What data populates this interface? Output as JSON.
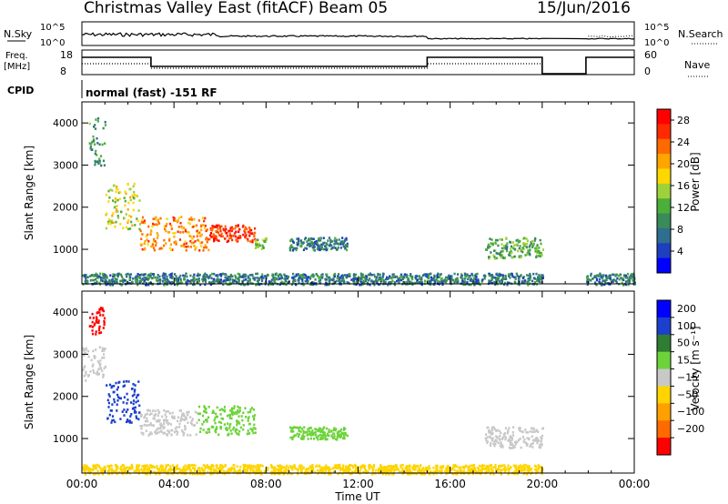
{
  "header": {
    "title": "Christmas Valley East (fitACF)",
    "beam": "Beam 05",
    "date": "15/Jun/2016"
  },
  "status_panels": {
    "nsky_label": "N.Sky",
    "nsky_ticks": [
      "10^5",
      "10^0"
    ],
    "nsearch_label": "N.Search",
    "nsearch_ticks": [
      "10^5",
      "10^0"
    ],
    "freq_label": "Freq.",
    "freq_unit": "[MHz]",
    "freq_ticks": [
      "18",
      "8"
    ],
    "nave_label": "Nave",
    "nave_ticks": [
      "60",
      "0"
    ],
    "cpid_label": "CPID",
    "cpid_text": "normal (fast) -151 RF"
  },
  "colors": {
    "power_scale": [
      "#0000ff",
      "#1e3fbf",
      "#2e6e8e",
      "#3a8a5a",
      "#4caf3a",
      "#9fd13a",
      "#ffd700",
      "#ffa500",
      "#ff6a00",
      "#ff2a00",
      "#ff0000"
    ],
    "velocity_scale": [
      "#0000ff",
      "#1c3fcc",
      "#2e7d32",
      "#6dd33a",
      "#c8c8c8",
      "#ffd400",
      "#ffa000",
      "#ff6a00",
      "#ff0000"
    ]
  },
  "chart_data": [
    {
      "type": "heatmap",
      "panel": "power",
      "xlabel": "",
      "ylabel": "Slant Range [km]",
      "x_ticks": [
        "00:00",
        "04:00",
        "08:00",
        "12:00",
        "16:00",
        "20:00",
        "00:00"
      ],
      "xlim_hours": [
        0,
        24
      ],
      "ylim": [
        180,
        4500
      ],
      "y_ticks": [
        "1000",
        "2000",
        "3000",
        "4000"
      ],
      "colorbar_label": "Power [dB]",
      "colorbar_ticks": [
        "4",
        "8",
        "12",
        "16",
        "20",
        "24",
        "28"
      ],
      "colorbar_range": [
        0,
        30
      ],
      "data_gaps_hours": [
        [
          20.0,
          21.9
        ]
      ],
      "regions": [
        {
          "start_h": 0.3,
          "end_h": 1.0,
          "range_km": [
            3000,
            4200
          ],
          "value": 10
        },
        {
          "start_h": 1.0,
          "end_h": 2.5,
          "range_km": [
            1500,
            2600
          ],
          "value": 16
        },
        {
          "start_h": 2.5,
          "end_h": 5.5,
          "range_km": [
            1000,
            1800
          ],
          "value": 22
        },
        {
          "start_h": 5.5,
          "end_h": 7.5,
          "range_km": [
            1200,
            1600
          ],
          "value": 26
        },
        {
          "start_h": 7.5,
          "end_h": 8.0,
          "range_km": [
            1000,
            1300
          ],
          "value": 14
        },
        {
          "start_h": 9.0,
          "end_h": 11.5,
          "range_km": [
            1000,
            1300
          ],
          "value": 8
        },
        {
          "start_h": 17.5,
          "end_h": 20.0,
          "range_km": [
            800,
            1300
          ],
          "value": 12
        },
        {
          "start_h": 0.0,
          "end_h": 20.0,
          "range_km": [
            180,
            450
          ],
          "value": 8
        },
        {
          "start_h": 21.9,
          "end_h": 24.0,
          "range_km": [
            180,
            450
          ],
          "value": 8
        }
      ]
    },
    {
      "type": "heatmap",
      "panel": "velocity",
      "xlabel": "Time UT",
      "ylabel": "Slant Range [km]",
      "x_ticks": [
        "00:00",
        "04:00",
        "08:00",
        "12:00",
        "16:00",
        "20:00",
        "00:00"
      ],
      "xlim_hours": [
        0,
        24
      ],
      "ylim": [
        180,
        4500
      ],
      "y_ticks": [
        "1000",
        "2000",
        "3000",
        "4000"
      ],
      "colorbar_label": "Velocity [m s⁻¹]",
      "colorbar_ticks": [
        "200",
        "100",
        "50",
        "15",
        "−15",
        "−50",
        "−100",
        "−200"
      ],
      "data_gaps_hours": [
        [
          20.0,
          21.9
        ]
      ],
      "regions": [
        {
          "start_h": 0.3,
          "end_h": 1.0,
          "range_km": [
            3500,
            4200
          ],
          "value": -250
        },
        {
          "start_h": 0.0,
          "end_h": 1.0,
          "range_km": [
            2400,
            3200
          ],
          "value": 0
        },
        {
          "start_h": 1.0,
          "end_h": 2.5,
          "range_km": [
            1400,
            2400
          ],
          "value": 160
        },
        {
          "start_h": 2.5,
          "end_h": 5.0,
          "range_km": [
            1100,
            1700
          ],
          "value": 0
        },
        {
          "start_h": 5.0,
          "end_h": 7.5,
          "range_km": [
            1100,
            1800
          ],
          "value": 30
        },
        {
          "start_h": 9.0,
          "end_h": 11.5,
          "range_km": [
            1000,
            1300
          ],
          "value": 30
        },
        {
          "start_h": 17.5,
          "end_h": 20.0,
          "range_km": [
            800,
            1300
          ],
          "value": 0
        },
        {
          "start_h": 0.0,
          "end_h": 20.0,
          "range_km": [
            180,
            400
          ],
          "value": -40
        }
      ]
    }
  ]
}
